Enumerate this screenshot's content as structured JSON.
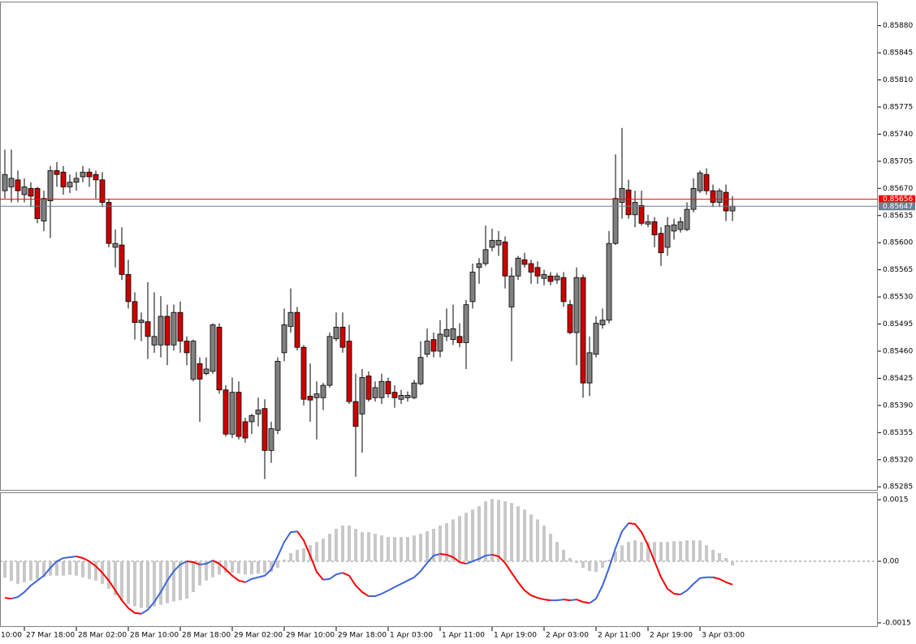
{
  "chart_data": [
    {
      "type": "candlestick",
      "bull_color": "#808080",
      "bear_color": "#cc0000",
      "outline_color": "#000000",
      "xlim": [
        -0.75,
        134.375
      ],
      "ylim": [
        0.8528,
        0.85911
      ],
      "grid": false,
      "xticks": [
        {
          "value": -5,
          "label": "10:00"
        },
        {
          "value": 3,
          "label": "27 Mar 18:00"
        },
        {
          "value": 11,
          "label": "28 Mar 02:00"
        },
        {
          "value": 19,
          "label": "28 Mar 10:00"
        },
        {
          "value": 27,
          "label": "28 Mar 18:00"
        },
        {
          "value": 35,
          "label": "29 Mar 02:00"
        },
        {
          "value": 43,
          "label": "29 Mar 10:00"
        },
        {
          "value": 51,
          "label": "29 Mar 18:00"
        },
        {
          "value": 59,
          "label": "1 Apr 03:00"
        },
        {
          "value": 67,
          "label": "1 Apr 11:00"
        },
        {
          "value": 75,
          "label": "1 Apr 19:00"
        },
        {
          "value": 83,
          "label": "2 Apr 03:00"
        },
        {
          "value": 91,
          "label": "2 Apr 11:00"
        },
        {
          "value": 99,
          "label": "2 Apr 19:00"
        },
        {
          "value": 107,
          "label": "3 Apr 03:00"
        }
      ],
      "yticks": [
        {
          "value": 0.8588,
          "label": "0.85880"
        },
        0.85845,
        {
          "value": 0.8581,
          "label": "0.85810"
        },
        0.85775,
        {
          "value": 0.8574,
          "label": "0.85740"
        },
        0.85705,
        {
          "value": 0.8567,
          "label": "0.85670"
        },
        0.85635,
        {
          "value": 0.856,
          "label": "0.85600"
        },
        0.85565,
        {
          "value": 0.8553,
          "label": "0.85530"
        },
        0.85495,
        {
          "value": 0.8546,
          "label": "0.85460"
        },
        0.85425,
        {
          "value": 0.8539,
          "label": "0.85390"
        },
        0.85355,
        {
          "value": 0.8532,
          "label": "0.85320"
        },
        0.85285
      ],
      "price_lines": [
        {
          "value": 0.85656,
          "color": "#ff0000"
        },
        {
          "value": 0.85647,
          "color": "#708090"
        }
      ],
      "open": [
        0.85667,
        0.85672,
        0.85681,
        0.85662,
        0.8567,
        0.8567,
        0.85628,
        0.85654,
        0.85693,
        0.85691,
        0.85672,
        0.85678,
        0.85685,
        0.85691,
        0.85688,
        0.85681,
        0.85652,
        0.85594,
        0.85597,
        0.85559,
        0.85524,
        0.85497,
        0.85498,
        0.85468,
        0.85468,
        0.85505,
        0.85468,
        0.8551,
        0.85473,
        0.85424,
        0.85444,
        0.85431,
        0.85434,
        0.85491,
        0.8541,
        0.85353,
        0.85407,
        0.85369,
        0.85369,
        0.85379,
        0.85386,
        0.85332,
        0.85358,
        0.85458,
        0.85492,
        0.8551,
        0.85465,
        0.85402,
        0.854,
        0.854,
        0.85416,
        0.85476,
        0.85491,
        0.85473,
        0.85395,
        0.85379,
        0.85428,
        0.854,
        0.854,
        0.85421,
        0.85407,
        0.85398,
        0.854,
        0.854,
        0.85418,
        0.85456,
        0.85475,
        0.8546,
        0.85479,
        0.85475,
        0.85479,
        0.85471,
        0.85524,
        0.85568,
        0.85573,
        0.85594,
        0.85597,
        0.85601,
        0.85517,
        0.85557,
        0.85578,
        0.85573,
        0.85568,
        0.85554,
        0.85557,
        0.85552,
        0.85555,
        0.8552,
        0.85484,
        0.85555,
        0.85419,
        0.85456,
        0.85494,
        0.855,
        0.85599,
        0.85652,
        0.85668,
        0.85636,
        0.85648,
        0.85624,
        0.85627,
        0.85612,
        0.85594,
        0.85615,
        0.85617,
        0.85617,
        0.85643,
        0.85667,
        0.85688,
        0.85667,
        0.85652,
        0.85665,
        0.85641
      ],
      "high": [
        0.8572,
        0.8572,
        0.85693,
        0.85683,
        0.85678,
        0.85672,
        0.85667,
        0.85699,
        0.85704,
        0.85699,
        0.85688,
        0.85691,
        0.85699,
        0.85696,
        0.85693,
        0.85691,
        0.85657,
        0.85617,
        0.8562,
        0.85578,
        0.85536,
        0.8551,
        0.85549,
        0.85536,
        0.85531,
        0.8552,
        0.8552,
        0.85524,
        0.85479,
        0.85475,
        0.85452,
        0.85452,
        0.85496,
        0.85496,
        0.85416,
        0.85426,
        0.85421,
        0.85374,
        0.85379,
        0.854,
        0.85398,
        0.85369,
        0.85452,
        0.85515,
        0.85541,
        0.85517,
        0.85468,
        0.85444,
        0.85421,
        0.85419,
        0.85484,
        0.8551,
        0.8551,
        0.85494,
        0.85431,
        0.85437,
        0.85434,
        0.85421,
        0.85431,
        0.85426,
        0.85416,
        0.8541,
        0.85408,
        0.85423,
        0.85473,
        0.85489,
        0.85484,
        0.855,
        0.85515,
        0.8552,
        0.85496,
        0.85526,
        0.85573,
        0.8558,
        0.85622,
        0.85618,
        0.85615,
        0.85608,
        0.85568,
        0.85583,
        0.85587,
        0.85578,
        0.85576,
        0.85565,
        0.85562,
        0.85561,
        0.85562,
        0.85526,
        0.85568,
        0.85559,
        0.85479,
        0.85505,
        0.85515,
        0.85615,
        0.85714,
        0.85748,
        0.85681,
        0.85667,
        0.85667,
        0.85636,
        0.85633,
        0.8562,
        0.85633,
        0.85631,
        0.85633,
        0.85652,
        0.85683,
        0.85693,
        0.85696,
        0.85675,
        0.8567,
        0.85675,
        0.8566
      ],
      "low": [
        0.85657,
        0.85652,
        0.85652,
        0.85652,
        0.85646,
        0.85625,
        0.85615,
        0.85606,
        0.85672,
        0.85662,
        0.85664,
        0.85667,
        0.85678,
        0.85672,
        0.85657,
        0.85646,
        0.85594,
        0.85568,
        0.85552,
        0.85515,
        0.85475,
        0.85473,
        0.8545,
        0.85458,
        0.85452,
        0.85442,
        0.85461,
        0.85458,
        0.85442,
        0.85421,
        0.85369,
        0.85429,
        0.85431,
        0.85405,
        0.8535,
        0.85348,
        0.85346,
        0.85342,
        0.85353,
        0.85363,
        0.85295,
        0.85316,
        0.85353,
        0.85447,
        0.85484,
        0.85461,
        0.8539,
        0.85369,
        0.85346,
        0.85384,
        0.85413,
        0.85473,
        0.85458,
        0.85392,
        0.85298,
        0.85329,
        0.85395,
        0.85395,
        0.85392,
        0.854,
        0.85387,
        0.85392,
        0.85395,
        0.85398,
        0.85416,
        0.85452,
        0.85452,
        0.85452,
        0.85473,
        0.85468,
        0.85465,
        0.85437,
        0.85515,
        0.85547,
        0.8557,
        0.85589,
        0.85583,
        0.85541,
        0.85447,
        0.85552,
        0.85568,
        0.85547,
        0.85547,
        0.85545,
        0.85545,
        0.85547,
        0.85517,
        0.85482,
        0.85442,
        0.854,
        0.85402,
        0.85452,
        0.85489,
        0.85496,
        0.85597,
        0.85631,
        0.85631,
        0.8562,
        0.85622,
        0.8562,
        0.85594,
        0.8557,
        0.85583,
        0.85604,
        0.85613,
        0.85615,
        0.85639,
        0.85664,
        0.85662,
        0.85646,
        0.85646,
        0.85628,
        0.85628
      ],
      "close": [
        0.85688,
        0.85683,
        0.85667,
        0.85672,
        0.8566,
        0.85631,
        0.85657,
        0.85693,
        0.85688,
        0.85672,
        0.85678,
        0.85683,
        0.85691,
        0.85685,
        0.85681,
        0.85652,
        0.85599,
        0.85599,
        0.85559,
        0.85524,
        0.85497,
        0.855,
        0.85479,
        0.85479,
        0.85505,
        0.85468,
        0.8551,
        0.85473,
        0.85458,
        0.85473,
        0.85424,
        0.85437,
        0.85494,
        0.8541,
        0.85353,
        0.85407,
        0.8535,
        0.85348,
        0.85377,
        0.85384,
        0.85332,
        0.8536,
        0.85447,
        0.85494,
        0.8551,
        0.85465,
        0.85398,
        0.85397,
        0.85405,
        0.85416,
        0.85479,
        0.85491,
        0.85465,
        0.85395,
        0.85363,
        0.85426,
        0.85398,
        0.85413,
        0.85421,
        0.85405,
        0.854,
        0.85403,
        0.85403,
        0.85419,
        0.85452,
        0.85473,
        0.8546,
        0.85482,
        0.85488,
        0.85489,
        0.85471,
        0.8552,
        0.85562,
        0.85573,
        0.85591,
        0.85603,
        0.85603,
        0.85557,
        0.85557,
        0.8558,
        0.85572,
        0.85562,
        0.85557,
        0.85559,
        0.8555,
        0.85557,
        0.85524,
        0.85484,
        0.85555,
        0.85419,
        0.85458,
        0.85496,
        0.855,
        0.85599,
        0.85657,
        0.8567,
        0.85636,
        0.85652,
        0.85625,
        0.85627,
        0.8561,
        0.85587,
        0.85622,
        0.85623,
        0.85627,
        0.85643,
        0.8567,
        0.8569,
        0.85667,
        0.85652,
        0.85667,
        0.85641,
        0.85647
      ]
    },
    {
      "type": "macd",
      "histogram_color": "#c8c8c8",
      "line_up_color": "#3c64dc",
      "line_down_color": "#ff0000",
      "zero_line_color": "#888888",
      "xlim": [
        -0.75,
        134.375
      ],
      "ylim": [
        -0.0016,
        0.00168
      ],
      "yticks": [
        0.0015,
        {
          "value": 0,
          "label": "0.00"
        },
        -0.0015
      ],
      "histogram": [
        -0.0004,
        -0.00048,
        -0.00055,
        -0.00051,
        -0.00047,
        -0.00043,
        -0.00039,
        -0.00035,
        -0.00035,
        -0.00035,
        -0.00033,
        -0.00035,
        -0.00039,
        -0.00043,
        -0.00047,
        -0.00055,
        -0.00067,
        -0.00083,
        -0.00095,
        -0.00104,
        -0.0011,
        -0.00114,
        -0.00114,
        -0.0011,
        -0.00106,
        -0.00102,
        -0.00098,
        -0.00095,
        -0.00091,
        -0.00075,
        -0.00059,
        -0.00047,
        -0.00039,
        -0.00032,
        -0.00028,
        -0.00028,
        -0.0003,
        -0.00032,
        -0.00032,
        -0.0003,
        -0.00028,
        -0.00026,
        -0.00016,
        4e-05,
        0.0002,
        0.00028,
        0.00032,
        0.00039,
        0.00047,
        0.00055,
        0.00067,
        0.00079,
        0.00087,
        0.00087,
        0.00079,
        0.00071,
        0.00071,
        0.00067,
        0.00063,
        0.00059,
        0.00059,
        0.00059,
        0.00059,
        0.00063,
        0.00067,
        0.00073,
        0.00079,
        0.00087,
        0.00093,
        0.00102,
        0.0011,
        0.00118,
        0.00126,
        0.00134,
        0.00146,
        0.00152,
        0.0015,
        0.00146,
        0.00142,
        0.00134,
        0.00126,
        0.00114,
        0.00102,
        0.00087,
        0.00067,
        0.00047,
        0.00028,
        8e-05,
        -4e-05,
        -0.00016,
        -0.00024,
        -0.00026,
        -0.00016,
        4e-05,
        0.00024,
        0.00039,
        0.00047,
        0.00051,
        0.00047,
        0.00047,
        0.00047,
        0.00047,
        0.00047,
        0.00049,
        0.00049,
        0.00051,
        0.00051,
        0.00051,
        0.00039,
        0.00028,
        0.0002,
        8e-05,
        -0.0001
      ],
      "line": [
        -0.00089,
        -0.00091,
        -0.00087,
        -0.00075,
        -0.00059,
        -0.00047,
        -0.00035,
        -0.00016,
        0,
        8e-05,
        0.0001,
        0.00012,
        8e-05,
        0,
        -0.00012,
        -0.00028,
        -0.00047,
        -0.00071,
        -0.00095,
        -0.00114,
        -0.00126,
        -0.00128,
        -0.00118,
        -0.00099,
        -0.00075,
        -0.00047,
        -0.00024,
        -8e-05,
        0,
        -2e-05,
        -8e-05,
        -6e-05,
        2e-05,
        -6e-05,
        -0.0002,
        -0.00035,
        -0.00047,
        -0.00051,
        -0.00043,
        -0.00039,
        -0.00035,
        -0.0002,
        0.00012,
        0.00047,
        0.00071,
        0.00073,
        0.00051,
        0.00014,
        -0.00026,
        -0.00045,
        -0.00043,
        -0.00032,
        -0.00028,
        -0.00035,
        -0.00059,
        -0.00075,
        -0.00085,
        -0.00085,
        -0.00079,
        -0.00071,
        -0.00063,
        -0.00055,
        -0.00047,
        -0.00039,
        -0.00024,
        -4e-05,
        0.00014,
        0.00018,
        0.00016,
        0.0001,
        -2e-05,
        -6e-05,
        0,
        6e-05,
        0.00014,
        0.00016,
        0.00012,
        -4e-05,
        -0.00028,
        -0.00051,
        -0.00071,
        -0.00083,
        -0.00089,
        -0.00093,
        -0.00095,
        -0.00095,
        -0.00093,
        -0.00095,
        -0.00093,
        -0.00099,
        -0.00102,
        -0.00091,
        -0.00059,
        -0.00016,
        0.00032,
        0.00073,
        0.00093,
        0.00091,
        0.00071,
        0.00039,
        0,
        -0.00039,
        -0.00067,
        -0.00079,
        -0.00081,
        -0.00071,
        -0.00055,
        -0.00041,
        -0.00039,
        -0.00039,
        -0.00043,
        -0.00051,
        -0.00057
      ]
    }
  ]
}
